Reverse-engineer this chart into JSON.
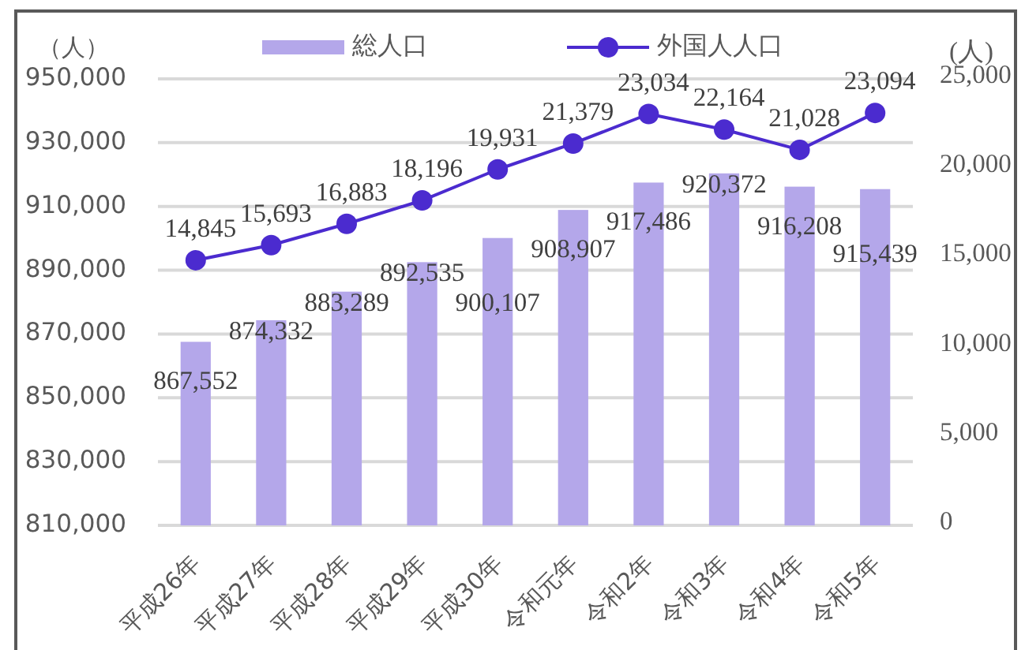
{
  "chart_data": {
    "type": "bar",
    "categories": [
      "平成26年",
      "平成27年",
      "平成28年",
      "平成29年",
      "平成30年",
      "令和元年",
      "令和2年",
      "令和3年",
      "令和4年",
      "令和5年"
    ],
    "ylabel": "（人）",
    "y2label": "(人)",
    "ylim": [
      810000,
      950000
    ],
    "yticks": [
      {
        "value": 810000,
        "label": "810,000"
      },
      {
        "value": 830000,
        "label": "830,000"
      },
      {
        "value": 850000,
        "label": "850,000"
      },
      {
        "value": 870000,
        "label": "870,000"
      },
      {
        "value": 890000,
        "label": "890,000"
      },
      {
        "value": 910000,
        "label": "910,000"
      },
      {
        "value": 930000,
        "label": "930,000"
      },
      {
        "value": 950000,
        "label": "950,000"
      }
    ],
    "y2lim": [
      0,
      25000
    ],
    "y2ticks": [
      0,
      {
        "value": 5000,
        "label": "5,000"
      },
      {
        "value": 10000,
        "label": "10,000"
      },
      {
        "value": 15000,
        "label": "15,000"
      },
      {
        "value": 20000,
        "label": "20,000"
      },
      {
        "value": 25000,
        "label": "25,000"
      }
    ],
    "grid": "y",
    "legend": "top",
    "series": [
      {
        "name": "総人口",
        "color": "#b4a7ea",
        "values": [
          867552,
          874332,
          883289,
          892535,
          900107,
          908907,
          917486,
          920372,
          916208,
          915439
        ],
        "value_labels": [
          "867,552",
          "874,332",
          "883,289",
          "892,535",
          "900,107",
          "908,907",
          "917,486",
          "920,372",
          "916,208",
          "915,439"
        ]
      },
      {
        "name": "外国人人口",
        "type": "line",
        "axis": "y2",
        "color": "#4b2bcf",
        "marker": "circle",
        "values": [
          14845,
          15693,
          16883,
          18196,
          19931,
          21379,
          23034,
          22164,
          21028,
          23094
        ],
        "value_labels": [
          "14,845",
          "15,693",
          "16,883",
          "18,196",
          "19,931",
          "21,379",
          "23,034",
          "22,164",
          "21,028",
          "23,094"
        ]
      }
    ]
  }
}
